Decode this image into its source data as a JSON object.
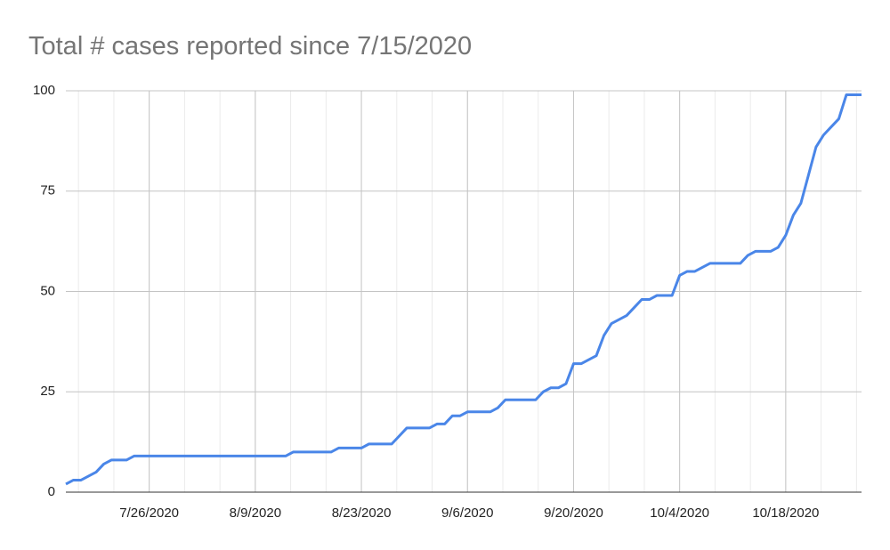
{
  "chart_data": {
    "type": "line",
    "title": "Total # cases reported since 7/15/2020",
    "x": [
      "7/15/2020",
      "7/16/2020",
      "7/17/2020",
      "7/18/2020",
      "7/19/2020",
      "7/20/2020",
      "7/21/2020",
      "7/22/2020",
      "7/23/2020",
      "7/24/2020",
      "7/25/2020",
      "7/26/2020",
      "7/27/2020",
      "7/28/2020",
      "7/29/2020",
      "7/30/2020",
      "7/31/2020",
      "8/1/2020",
      "8/2/2020",
      "8/3/2020",
      "8/4/2020",
      "8/5/2020",
      "8/6/2020",
      "8/7/2020",
      "8/8/2020",
      "8/9/2020",
      "8/10/2020",
      "8/11/2020",
      "8/12/2020",
      "8/13/2020",
      "8/14/2020",
      "8/15/2020",
      "8/16/2020",
      "8/17/2020",
      "8/18/2020",
      "8/19/2020",
      "8/20/2020",
      "8/21/2020",
      "8/22/2020",
      "8/23/2020",
      "8/24/2020",
      "8/25/2020",
      "8/26/2020",
      "8/27/2020",
      "8/28/2020",
      "8/29/2020",
      "8/30/2020",
      "8/31/2020",
      "9/1/2020",
      "9/2/2020",
      "9/3/2020",
      "9/4/2020",
      "9/5/2020",
      "9/6/2020",
      "9/7/2020",
      "9/8/2020",
      "9/9/2020",
      "9/10/2020",
      "9/11/2020",
      "9/12/2020",
      "9/13/2020",
      "9/14/2020",
      "9/15/2020",
      "9/16/2020",
      "9/17/2020",
      "9/18/2020",
      "9/19/2020",
      "9/20/2020",
      "9/21/2020",
      "9/22/2020",
      "9/23/2020",
      "9/24/2020",
      "9/25/2020",
      "9/26/2020",
      "9/27/2020",
      "9/28/2020",
      "9/29/2020",
      "9/30/2020",
      "10/1/2020",
      "10/2/2020",
      "10/3/2020",
      "10/4/2020",
      "10/5/2020",
      "10/6/2020",
      "10/7/2020",
      "10/8/2020",
      "10/9/2020",
      "10/10/2020",
      "10/11/2020",
      "10/12/2020",
      "10/13/2020",
      "10/14/2020",
      "10/15/2020",
      "10/16/2020",
      "10/17/2020",
      "10/18/2020",
      "10/19/2020",
      "10/20/2020",
      "10/21/2020",
      "10/22/2020",
      "10/23/2020",
      "10/24/2020",
      "10/25/2020",
      "10/26/2020",
      "10/27/2020",
      "10/28/2020"
    ],
    "series": [
      {
        "color": "#4a86e8",
        "values": [
          2,
          3,
          3,
          4,
          5,
          7,
          8,
          8,
          8,
          9,
          9,
          9,
          9,
          9,
          9,
          9,
          9,
          9,
          9,
          9,
          9,
          9,
          9,
          9,
          9,
          9,
          9,
          9,
          9,
          9,
          10,
          10,
          10,
          10,
          10,
          10,
          11,
          11,
          11,
          11,
          12,
          12,
          12,
          12,
          14,
          16,
          16,
          16,
          16,
          17,
          17,
          19,
          19,
          20,
          20,
          20,
          20,
          21,
          23,
          23,
          23,
          23,
          23,
          25,
          26,
          26,
          27,
          32,
          32,
          33,
          34,
          39,
          42,
          43,
          44,
          46,
          48,
          48,
          49,
          49,
          49,
          54,
          55,
          55,
          56,
          57,
          57,
          57,
          57,
          57,
          59,
          60,
          60,
          60,
          61,
          64,
          69,
          72,
          79,
          86,
          89,
          91,
          93,
          99,
          99,
          99
        ]
      }
    ],
    "xlim": [
      "7/15/2020",
      "10/28/2020"
    ],
    "xticks": [
      "7/26/2020",
      "8/9/2020",
      "8/23/2020",
      "9/6/2020",
      "9/20/2020",
      "10/4/2020",
      "10/18/2020"
    ],
    "ylim": [
      0,
      100
    ],
    "yticks": [
      0,
      25,
      50,
      75,
      100
    ],
    "grid": true
  }
}
